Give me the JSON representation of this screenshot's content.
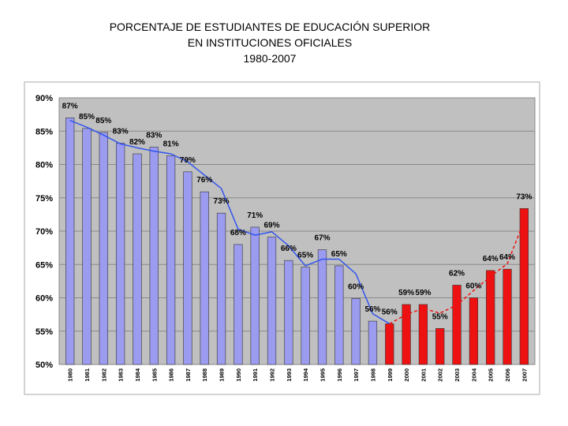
{
  "title_lines": [
    "PORCENTAJE DE ESTUDIANTES DE EDUCACIÓN SUPERIOR",
    "EN INSTITUCIONES OFICIALES",
    "1980-2007"
  ],
  "chart_data": {
    "type": "bar",
    "title": "PORCENTAJE DE ESTUDIANTES DE EDUCACIÓN SUPERIOR EN INSTITUCIONES OFICIALES 1980-2007",
    "xlabel": "",
    "ylabel": "",
    "ylim": [
      50,
      90
    ],
    "y_ticks": [
      "90%",
      "85%",
      "80%",
      "75%",
      "70%",
      "65%",
      "60%",
      "55%",
      "50%"
    ],
    "grid": true,
    "categories": [
      "1980",
      "1981",
      "1982",
      "1983",
      "1984",
      "1985",
      "1986",
      "1987",
      "1988",
      "1989",
      "1990",
      "1991",
      "1992",
      "1993",
      "1994",
      "1995",
      "1996",
      "1997",
      "1998",
      "1999",
      "2000",
      "2001",
      "2002",
      "2003",
      "2004",
      "2005",
      "2006",
      "2007"
    ],
    "values": [
      87,
      85.4,
      84.8,
      83.2,
      81.6,
      82.6,
      81.3,
      78.9,
      75.9,
      72.7,
      68.0,
      70.6,
      69.1,
      65.6,
      64.6,
      67.2,
      64.8,
      59.9,
      56.5,
      56.1,
      59.0,
      59.0,
      55.4,
      61.9,
      60.0,
      64.1,
      64.3,
      73.4
    ],
    "data_labels": [
      "87%",
      "85%",
      "85%",
      "83%",
      "82%",
      "83%",
      "81%",
      "79%",
      "76%",
      "73%",
      "68%",
      "71%",
      "69%",
      "66%",
      "65%",
      "67%",
      "65%",
      "60%",
      "56%",
      "56%",
      "59%",
      "59%",
      "55%",
      "62%",
      "60%",
      "64%",
      "64%",
      "73%"
    ],
    "bar_colors": {
      "historic": "#9b9bf0",
      "recent": "#ee1111"
    },
    "trend_colors": {
      "historic": "#3355ee",
      "recent": "#ee1111"
    },
    "trend_historic": [
      86.6,
      85.6,
      84.4,
      83.1,
      82.5,
      82.0,
      81.6,
      80.4,
      78.4,
      76.4,
      70.3,
      69.4,
      69.9,
      67.8,
      64.8,
      65.8,
      65.8,
      63.6,
      57.6,
      56.1
    ],
    "trend_recent": [
      56.1,
      57.5,
      58.4,
      57.7,
      58.9,
      61.1,
      63.2,
      65.1,
      71.5
    ],
    "plot_background": "#c0c0c0"
  }
}
